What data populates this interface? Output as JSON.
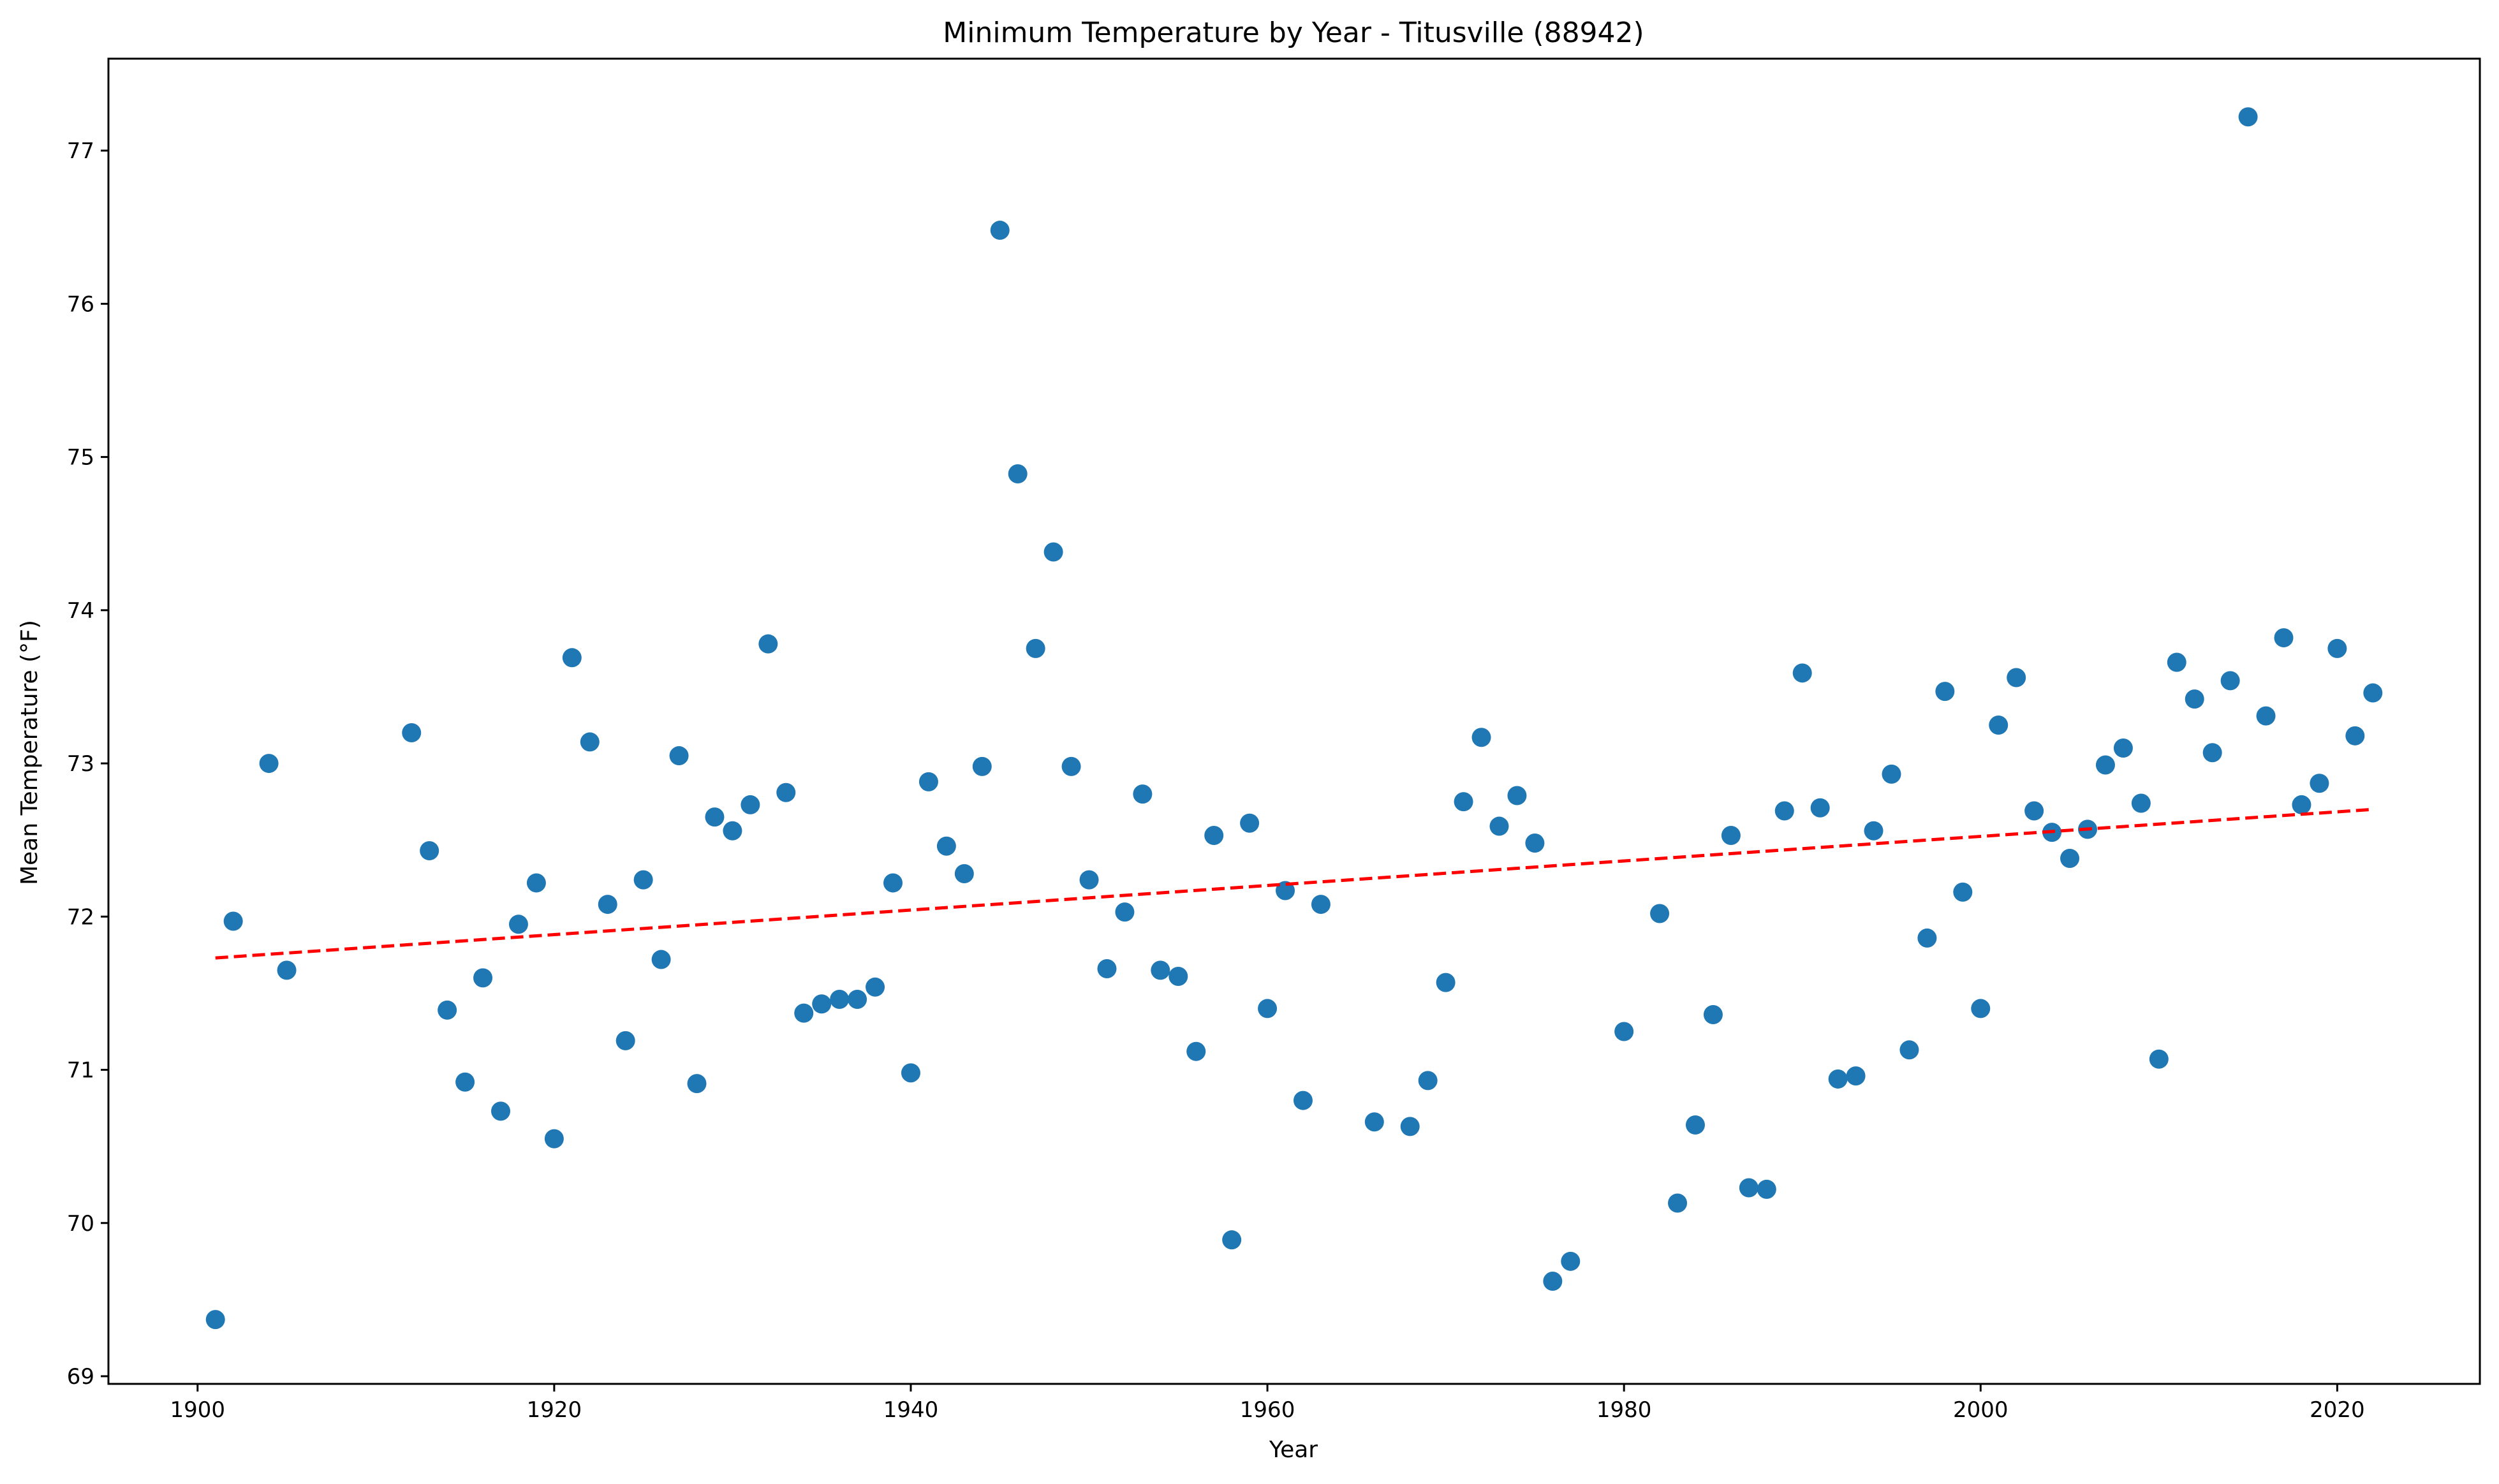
{
  "chart_data": {
    "type": "scatter",
    "title": "Minimum Temperature by Year - Titusville (88942)",
    "xlabel": "Year",
    "ylabel": "Mean Temperature (°F)",
    "xlim": [
      1895,
      2028
    ],
    "ylim": [
      68.95,
      77.6
    ],
    "xticks": [
      1900,
      1920,
      1940,
      1960,
      1980,
      2000,
      2020
    ],
    "yticks": [
      69,
      70,
      71,
      72,
      73,
      74,
      75,
      76,
      77
    ],
    "grid": false,
    "colors": {
      "points": "#1f77b4",
      "trend": "#ff0000"
    },
    "series": [
      {
        "x": [
          1901,
          1902,
          1904,
          1905,
          1912,
          1913,
          1914,
          1915,
          1916,
          1917,
          1918,
          1919,
          1920,
          1921,
          1922,
          1923,
          1924,
          1925,
          1926,
          1927,
          1928,
          1929,
          1930,
          1931,
          1932,
          1933,
          1934,
          1935,
          1936,
          1937,
          1938,
          1939,
          1940,
          1941,
          1942,
          1943,
          1944,
          1945,
          1946,
          1947,
          1948,
          1949,
          1950,
          1951,
          1952,
          1953,
          1954,
          1955,
          1956,
          1957,
          1958,
          1959,
          1960,
          1961,
          1962,
          1963,
          1966,
          1968,
          1969,
          1970,
          1971,
          1972,
          1973,
          1974,
          1975,
          1976,
          1977,
          1980,
          1982,
          1983,
          1984,
          1985,
          1986,
          1987,
          1988,
          1989,
          1990,
          1991,
          1992,
          1993,
          1994,
          1995,
          1996,
          1997,
          1998,
          1999,
          2000,
          2001,
          2002,
          2003,
          2004,
          2005,
          2006,
          2007,
          2008,
          2009,
          2010,
          2011,
          2012,
          2013,
          2014,
          2015,
          2016,
          2017,
          2018,
          2019,
          2020,
          2021,
          2022
        ],
        "y": [
          69.37,
          71.97,
          73.0,
          71.65,
          73.2,
          72.43,
          71.39,
          70.92,
          71.6,
          70.73,
          71.95,
          72.22,
          70.55,
          73.69,
          73.14,
          72.08,
          71.19,
          72.24,
          71.72,
          73.05,
          70.91,
          72.65,
          72.56,
          72.73,
          73.78,
          72.81,
          71.37,
          71.43,
          71.46,
          71.46,
          71.54,
          72.22,
          70.98,
          72.88,
          72.46,
          72.28,
          72.98,
          76.48,
          74.89,
          73.75,
          74.38,
          72.98,
          72.24,
          71.66,
          72.03,
          72.8,
          71.65,
          71.61,
          71.12,
          72.53,
          69.89,
          72.61,
          71.4,
          72.17,
          70.8,
          72.08,
          70.66,
          70.63,
          70.93,
          71.57,
          72.75,
          73.17,
          72.59,
          72.79,
          72.48,
          69.62,
          69.75,
          71.25,
          72.02,
          70.13,
          70.64,
          71.36,
          72.53,
          70.23,
          70.22,
          72.69,
          73.59,
          72.71,
          70.94,
          70.96,
          72.56,
          72.93,
          71.13,
          71.86,
          73.47,
          72.16,
          71.4,
          73.25,
          73.56,
          72.69,
          72.55,
          72.38,
          72.57,
          72.99,
          73.1,
          72.74,
          71.07,
          73.66,
          73.42,
          73.07,
          73.54,
          77.22,
          73.31,
          73.82,
          72.73,
          72.87,
          73.75,
          73.18,
          73.46
        ]
      }
    ],
    "trendline": {
      "x": [
        1901,
        2022
      ],
      "y": [
        71.73,
        72.7
      ]
    }
  }
}
